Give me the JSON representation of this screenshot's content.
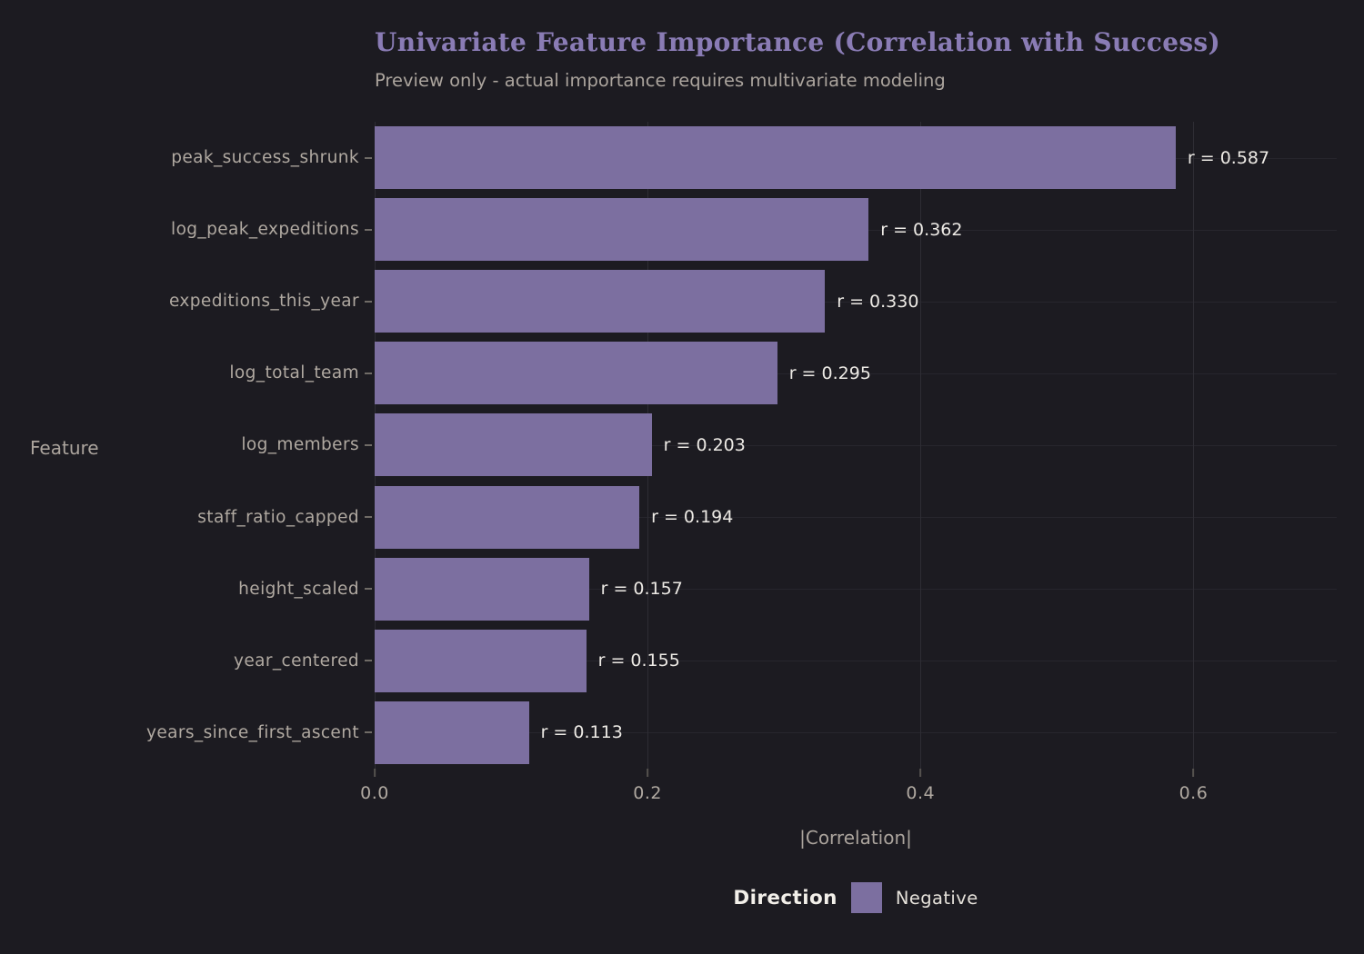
{
  "chart_data": {
    "type": "bar",
    "orientation": "horizontal",
    "title": "Univariate Feature Importance (Correlation with Success)",
    "subtitle": "Preview only - actual importance requires multivariate modeling",
    "xlabel": "|Correlation|",
    "ylabel": "Feature",
    "xlim": [
      0,
      0.705
    ],
    "grid": true,
    "xticks": [
      {
        "value": 0.0,
        "label": "0.0"
      },
      {
        "value": 0.2,
        "label": "0.2"
      },
      {
        "value": 0.4,
        "label": "0.4"
      },
      {
        "value": 0.6,
        "label": "0.6"
      }
    ],
    "categories": [
      "peak_success_shrunk",
      "log_peak_expeditions",
      "expeditions_this_year",
      "log_total_team",
      "log_members",
      "staff_ratio_capped",
      "height_scaled",
      "year_centered",
      "years_since_first_ascent"
    ],
    "values": [
      0.587,
      0.362,
      0.33,
      0.295,
      0.203,
      0.194,
      0.157,
      0.155,
      0.113
    ],
    "bar_labels": [
      "r = 0.587",
      "r = 0.362",
      "r = 0.330",
      "r = 0.295",
      "r = 0.203",
      "r = 0.194",
      "r = 0.157",
      "r = 0.155",
      "r = 0.113"
    ],
    "legend": {
      "title": "Direction",
      "position": "bottom-center",
      "entries": [
        {
          "label": "Negative",
          "color": "#7c6fa0"
        }
      ]
    },
    "colors": {
      "background": "#1c1b21",
      "bar": "#7c6fa0",
      "title": "#8a7cb5",
      "subtitle": "#aba49d",
      "tick_text": "#b0a9a1",
      "value_text": "#edeae5",
      "gridline": "#2e2d34"
    }
  }
}
